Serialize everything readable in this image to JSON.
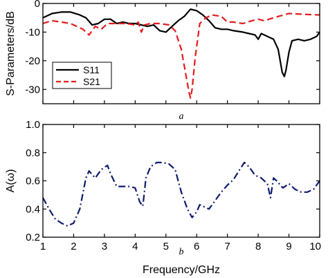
{
  "chart_data": [
    {
      "type": "line",
      "panel_label": "a",
      "xlim": [
        1,
        10
      ],
      "ylim": [
        -35,
        0
      ],
      "yticks": [
        0,
        -10,
        -20,
        -30
      ],
      "ylabel": "S-Parameters/dB",
      "grid": false,
      "legend_position": "lower-left",
      "series": [
        {
          "name": "S11",
          "color": "#000000",
          "style": "solid",
          "x": [
            1.0,
            1.3,
            1.6,
            1.9,
            2.2,
            2.4,
            2.6,
            2.8,
            3.0,
            3.2,
            3.4,
            3.6,
            3.8,
            4.0,
            4.2,
            4.4,
            4.6,
            4.8,
            5.0,
            5.2,
            5.4,
            5.6,
            5.8,
            6.0,
            6.2,
            6.4,
            6.6,
            6.8,
            7.0,
            7.2,
            7.5,
            7.7,
            7.9,
            8.0,
            8.1,
            8.3,
            8.5,
            8.65,
            8.78,
            8.85,
            8.9,
            9.0,
            9.1,
            9.3,
            9.5,
            9.7,
            9.9,
            10.0
          ],
          "values": [
            -5.0,
            -3.5,
            -3.0,
            -3.0,
            -4.0,
            -5.0,
            -7.5,
            -7.0,
            -5.5,
            -5.5,
            -7.0,
            -6.5,
            -7.0,
            -7.0,
            -7.5,
            -8.0,
            -7.5,
            -9.5,
            -10.0,
            -8.0,
            -6.0,
            -4.5,
            -2.0,
            -2.5,
            -4.0,
            -6.0,
            -8.5,
            -9.0,
            -9.0,
            -9.5,
            -10.0,
            -10.5,
            -11.0,
            -12.5,
            -10.5,
            -11.5,
            -12.5,
            -16.0,
            -24.0,
            -25.5,
            -23.5,
            -17.0,
            -13.0,
            -12.5,
            -13.0,
            -12.5,
            -11.5,
            -10.0
          ]
        },
        {
          "name": "S21",
          "color": "#e41a1c",
          "style": "dashed",
          "x": [
            1.0,
            1.3,
            1.6,
            1.9,
            2.1,
            2.3,
            2.5,
            2.7,
            2.9,
            3.1,
            3.4,
            3.7,
            4.0,
            4.1,
            4.2,
            4.3,
            4.5,
            4.8,
            5.1,
            5.3,
            5.5,
            5.65,
            5.75,
            5.8,
            5.85,
            5.95,
            6.1,
            6.3,
            6.5,
            6.8,
            7.0,
            7.2,
            7.5,
            7.8,
            8.0,
            8.2,
            8.5,
            9.0,
            9.5,
            10.0
          ],
          "values": [
            -7.0,
            -6.0,
            -6.5,
            -7.0,
            -8.0,
            -9.0,
            -11.0,
            -8.0,
            -9.0,
            -7.0,
            -7.0,
            -7.0,
            -7.5,
            -6.5,
            -10.0,
            -7.5,
            -7.0,
            -7.0,
            -7.5,
            -9.5,
            -16.0,
            -25.0,
            -31.0,
            -33.0,
            -30.0,
            -19.0,
            -7.0,
            -5.0,
            -4.0,
            -4.5,
            -6.5,
            -6.5,
            -7.0,
            -6.0,
            -5.5,
            -6.0,
            -5.0,
            -3.5,
            -3.8,
            -4.0
          ]
        }
      ]
    },
    {
      "type": "line",
      "panel_label": "b",
      "xlim": [
        1,
        10
      ],
      "ylim": [
        0.2,
        1.0
      ],
      "xticks": [
        1,
        2,
        3,
        4,
        5,
        6,
        7,
        8,
        9,
        10
      ],
      "yticks": [
        0.2,
        0.4,
        0.6,
        0.8,
        1.0
      ],
      "ylabel": "A(ω)",
      "xlabel": "Frequency/GHz",
      "grid": false,
      "series": [
        {
          "color": "#0d1a6e",
          "style": "dash-dot",
          "x": [
            1.0,
            1.2,
            1.4,
            1.6,
            1.8,
            2.0,
            2.2,
            2.4,
            2.5,
            2.7,
            2.9,
            3.1,
            3.2,
            3.4,
            3.6,
            3.8,
            4.0,
            4.15,
            4.25,
            4.35,
            4.5,
            4.7,
            4.9,
            5.1,
            5.3,
            5.5,
            5.7,
            5.85,
            6.0,
            6.1,
            6.2,
            6.4,
            6.6,
            6.8,
            7.0,
            7.2,
            7.4,
            7.55,
            7.7,
            7.9,
            8.1,
            8.3,
            8.4,
            8.5,
            8.6,
            8.8,
            9.0,
            9.2,
            9.4,
            9.6,
            9.8,
            10.0
          ],
          "values": [
            0.48,
            0.4,
            0.33,
            0.3,
            0.28,
            0.3,
            0.4,
            0.62,
            0.67,
            0.62,
            0.68,
            0.71,
            0.65,
            0.56,
            0.56,
            0.56,
            0.55,
            0.45,
            0.42,
            0.62,
            0.7,
            0.73,
            0.73,
            0.72,
            0.68,
            0.52,
            0.4,
            0.34,
            0.38,
            0.43,
            0.42,
            0.4,
            0.46,
            0.52,
            0.57,
            0.61,
            0.68,
            0.73,
            0.7,
            0.64,
            0.62,
            0.58,
            0.48,
            0.62,
            0.6,
            0.55,
            0.58,
            0.54,
            0.52,
            0.52,
            0.54,
            0.6
          ]
        }
      ]
    }
  ]
}
